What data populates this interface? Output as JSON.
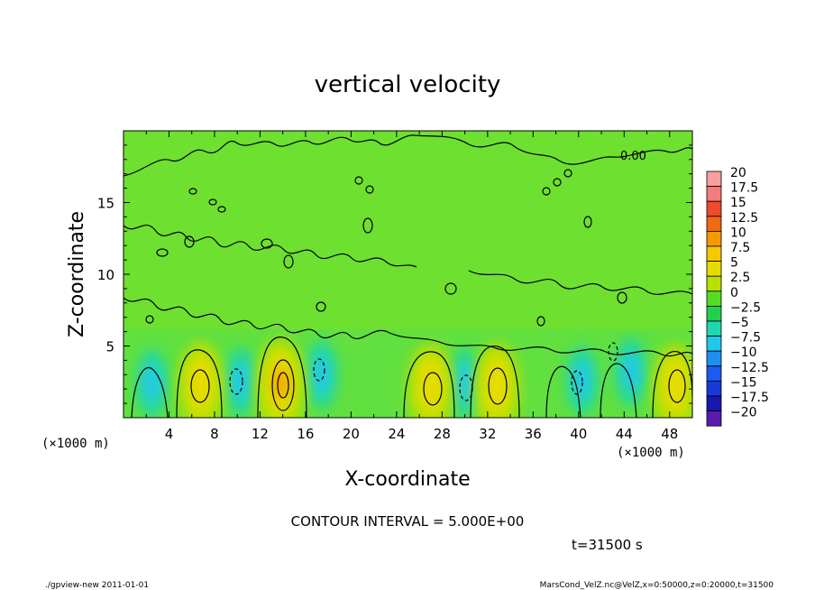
{
  "chart_data": {
    "type": "heatmap",
    "title": "vertical velocity",
    "xlabel": "X-coordinate",
    "ylabel": "Z-coordinate",
    "x_unit": "(×1000 m)",
    "y_unit": "(×1000 m)",
    "xlim": [
      0,
      50
    ],
    "ylim": [
      0,
      20
    ],
    "x_ticks": [
      "4",
      "8",
      "12",
      "16",
      "20",
      "24",
      "28",
      "32",
      "36",
      "40",
      "44",
      "48"
    ],
    "y_ticks": [
      "5",
      "10",
      "15"
    ],
    "contour_interval_text": "CONTOUR INTERVAL = 5.000E+00",
    "contour_labels": [
      "0.00"
    ],
    "time_text": "t=31500 s",
    "footer_left": "./gpview-new   2011-01-01",
    "footer_right": "MarsCond_VelZ.nc@VelZ,x=0:50000,z=0:20000,t=31500",
    "colorbar": {
      "levels": [
        "20",
        "17.5",
        "15",
        "12.5",
        "10",
        "7.5",
        "5",
        "2.5",
        "0",
        "-2.5",
        "-5",
        "-7.5",
        "-10",
        "-12.5",
        "-15",
        "-17.5",
        "-20"
      ],
      "colors": [
        "#f6a0a0",
        "#f47c7c",
        "#f04a2c",
        "#ef6a10",
        "#f59a00",
        "#f7c800",
        "#e6dc00",
        "#b9e100",
        "#55dd22",
        "#22d050",
        "#1ed8b4",
        "#20c8ec",
        "#1e8ff0",
        "#1c5af0",
        "#1838d8",
        "#1818b0",
        "#5a1ab0"
      ]
    },
    "updrafts": [
      {
        "x": 6.8,
        "z": 2.4,
        "w": 9
      },
      {
        "x": 13.8,
        "z": 2.4,
        "w": 15
      },
      {
        "x": 27.0,
        "z": 2.3,
        "w": 9
      },
      {
        "x": 32.8,
        "z": 2.3,
        "w": 9
      },
      {
        "x": 48.5,
        "z": 2.3,
        "w": 8
      }
    ],
    "downdrafts": [
      {
        "x": 2.5,
        "z": 2.4,
        "w": -5
      },
      {
        "x": 10.3,
        "z": 2.5,
        "w": -6
      },
      {
        "x": 17.4,
        "z": 3.0,
        "w": -5
      },
      {
        "x": 30.0,
        "z": 2.4,
        "w": -6
      },
      {
        "x": 40.3,
        "z": 2.6,
        "w": -6
      },
      {
        "x": 44.6,
        "z": 3.2,
        "w": -6
      }
    ]
  }
}
